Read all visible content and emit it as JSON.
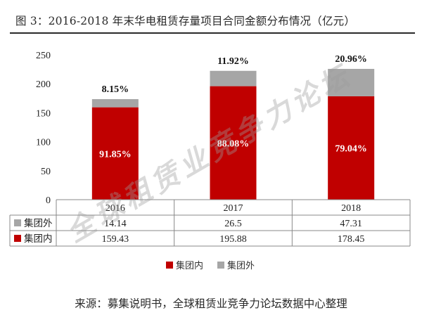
{
  "title": "图 3：2016-2018 年末华电租赁存量项目合同金额分布情况（亿元）",
  "source": "来源：募集说明书，全球租赁业竞争力论坛数据中心整理",
  "watermark": "全球租赁业竞争力论坛",
  "chart_data": {
    "type": "bar",
    "stacked": true,
    "categories": [
      "2016",
      "2017",
      "2018"
    ],
    "ylim": [
      0,
      250
    ],
    "yticks": [
      0,
      50,
      100,
      150,
      200,
      250
    ],
    "series": [
      {
        "name": "集团内",
        "values": [
          159.43,
          195.88,
          178.45
        ],
        "color": "#c00000",
        "pct_labels": [
          "91.85%",
          "88.08%",
          "79.04%"
        ]
      },
      {
        "name": "集团外",
        "values": [
          14.14,
          26.5,
          47.31
        ],
        "color": "#a6a6a6",
        "pct_labels": [
          "8.15%",
          "11.92%",
          "20.96%"
        ]
      }
    ],
    "table": {
      "rows": [
        {
          "label": "集团外",
          "color": "#a6a6a6",
          "values": [
            "14.14",
            "26.5",
            "47.31"
          ]
        },
        {
          "label": "集团内",
          "color": "#c00000",
          "values": [
            "159.43",
            "195.88",
            "178.45"
          ]
        }
      ]
    },
    "legend": [
      "集团内",
      "集团外"
    ],
    "legend_position": "bottom"
  }
}
